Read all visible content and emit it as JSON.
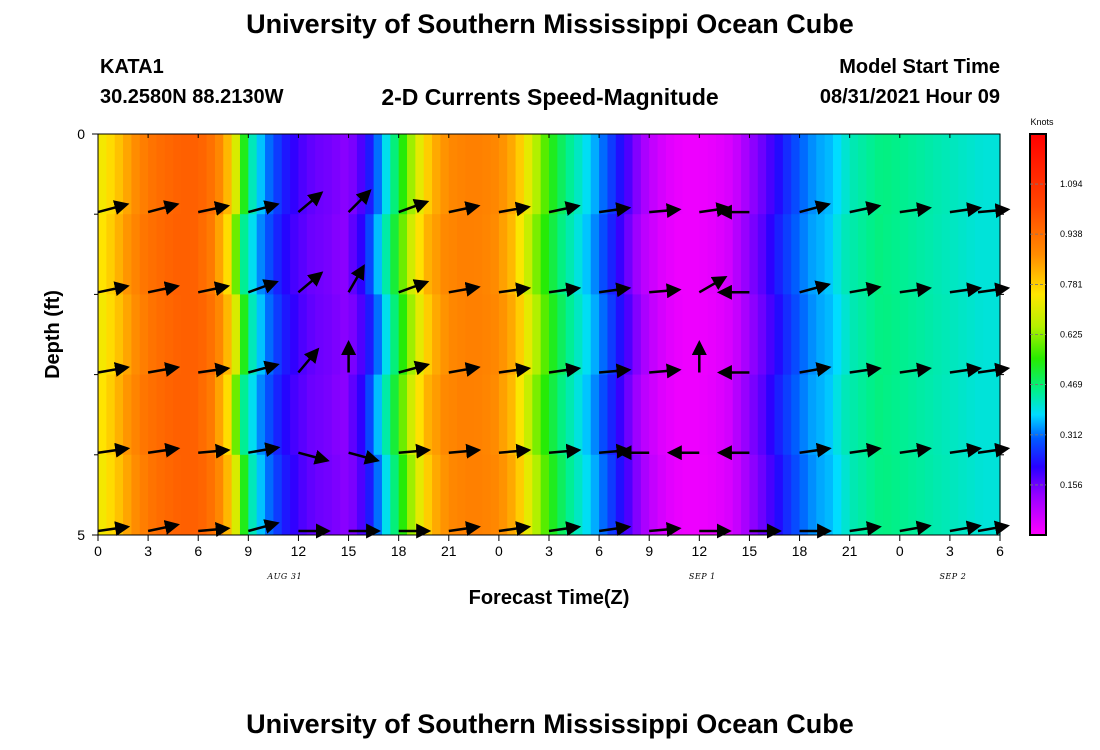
{
  "header": {
    "title_top": "University of Southern Mississippi Ocean Cube",
    "title_bottom": "University of Southern Mississippi Ocean Cube",
    "station": "KATA1",
    "coords": "30.2580N  88.2130W",
    "subtitle": "2-D Currents Speed-Magnitude",
    "model_label": "Model Start Time",
    "model_time": "08/31/2021 Hour 09"
  },
  "chart_data": {
    "type": "heatmap",
    "title": "2-D Currents Speed-Magnitude",
    "xlabel": "Forecast Time(Z)",
    "ylabel": "Depth (ft)",
    "colorbar_label": "Knots",
    "x_tick_labels": [
      "0",
      "3",
      "6",
      "9",
      "12",
      "15",
      "18",
      "21",
      "0",
      "3",
      "6",
      "9",
      "12",
      "15",
      "18",
      "21",
      "0",
      "3",
      "6"
    ],
    "x_tick_values_hours": [
      0,
      3,
      6,
      9,
      12,
      15,
      18,
      21,
      24,
      27,
      30,
      33,
      36,
      39,
      42,
      45,
      48,
      51,
      54
    ],
    "xlim_hours": [
      0,
      54
    ],
    "date_labels": [
      {
        "text": "AUG 31",
        "hour": 11
      },
      {
        "text": "SEP 1",
        "hour": 36
      },
      {
        "text": "SEP 2",
        "hour": 51
      }
    ],
    "y_tick_labels": [
      "0",
      "5"
    ],
    "ylim_ft": [
      0,
      5
    ],
    "depth_levels_ft": [
      0.5,
      1.5,
      2.5,
      3.5,
      4.5
    ],
    "colorbar_ticks": [
      "1.094",
      "0.938",
      "0.781",
      "0.625",
      "0.469",
      "0.312",
      "0.156"
    ],
    "colorbar_tick_values": [
      1.094,
      0.938,
      0.781,
      0.625,
      0.469,
      0.312,
      0.156
    ],
    "colorbar_range": [
      0,
      1.25
    ],
    "speed_knots_by_hour": [
      [
        0,
        0.72
      ],
      [
        1,
        0.78
      ],
      [
        2,
        0.86
      ],
      [
        3,
        0.92
      ],
      [
        4,
        0.95
      ],
      [
        5,
        0.97
      ],
      [
        6,
        0.97
      ],
      [
        7,
        0.92
      ],
      [
        8,
        0.78
      ],
      [
        9,
        0.45
      ],
      [
        10,
        0.33
      ],
      [
        11,
        0.25
      ],
      [
        12,
        0.19
      ],
      [
        13,
        0.16
      ],
      [
        14,
        0.15
      ],
      [
        15,
        0.13
      ],
      [
        16,
        0.2
      ],
      [
        17,
        0.35
      ],
      [
        18,
        0.5
      ],
      [
        19,
        0.68
      ],
      [
        20,
        0.82
      ],
      [
        21,
        0.88
      ],
      [
        22,
        0.9
      ],
      [
        23,
        0.9
      ],
      [
        24,
        0.88
      ],
      [
        25,
        0.82
      ],
      [
        26,
        0.68
      ],
      [
        27,
        0.55
      ],
      [
        28,
        0.46
      ],
      [
        29,
        0.4
      ],
      [
        30,
        0.33
      ],
      [
        31,
        0.25
      ],
      [
        32,
        0.16
      ],
      [
        33,
        0.08
      ],
      [
        34,
        0.04
      ],
      [
        35,
        0.02
      ],
      [
        36,
        0.02
      ],
      [
        37,
        0.03
      ],
      [
        38,
        0.05
      ],
      [
        39,
        0.12
      ],
      [
        40,
        0.17
      ],
      [
        41,
        0.24
      ],
      [
        42,
        0.3
      ],
      [
        43,
        0.34
      ],
      [
        44,
        0.36
      ],
      [
        45,
        0.42
      ],
      [
        46,
        0.44
      ],
      [
        47,
        0.46
      ],
      [
        48,
        0.45
      ],
      [
        49,
        0.44
      ],
      [
        50,
        0.43
      ],
      [
        51,
        0.42
      ],
      [
        52,
        0.41
      ],
      [
        53,
        0.4
      ],
      [
        54,
        0.4
      ]
    ],
    "vector_hours": [
      0,
      3,
      6,
      9,
      12,
      15,
      18,
      21,
      24,
      27,
      30,
      33,
      36,
      39,
      42,
      45,
      48,
      51,
      54
    ],
    "vector_directions_deg_from_east_ccw": [
      [
        15,
        15,
        12,
        15,
        40,
        45,
        20,
        12,
        10,
        12,
        8,
        5,
        8,
        180,
        15,
        12,
        8,
        8,
        5
      ],
      [
        12,
        12,
        12,
        20,
        40,
        60,
        20,
        10,
        8,
        8,
        8,
        5,
        30,
        180,
        15,
        10,
        8,
        8,
        8
      ],
      [
        10,
        10,
        8,
        15,
        50,
        90,
        15,
        10,
        8,
        8,
        5,
        5,
        90,
        180,
        10,
        8,
        8,
        8,
        8
      ],
      [
        8,
        8,
        5,
        10,
        -15,
        -15,
        5,
        5,
        5,
        5,
        5,
        180,
        180,
        180,
        8,
        8,
        8,
        8,
        8
      ],
      [
        8,
        12,
        5,
        15,
        0,
        0,
        0,
        8,
        8,
        8,
        8,
        5,
        0,
        0,
        0,
        8,
        10,
        10,
        10
      ]
    ]
  }
}
